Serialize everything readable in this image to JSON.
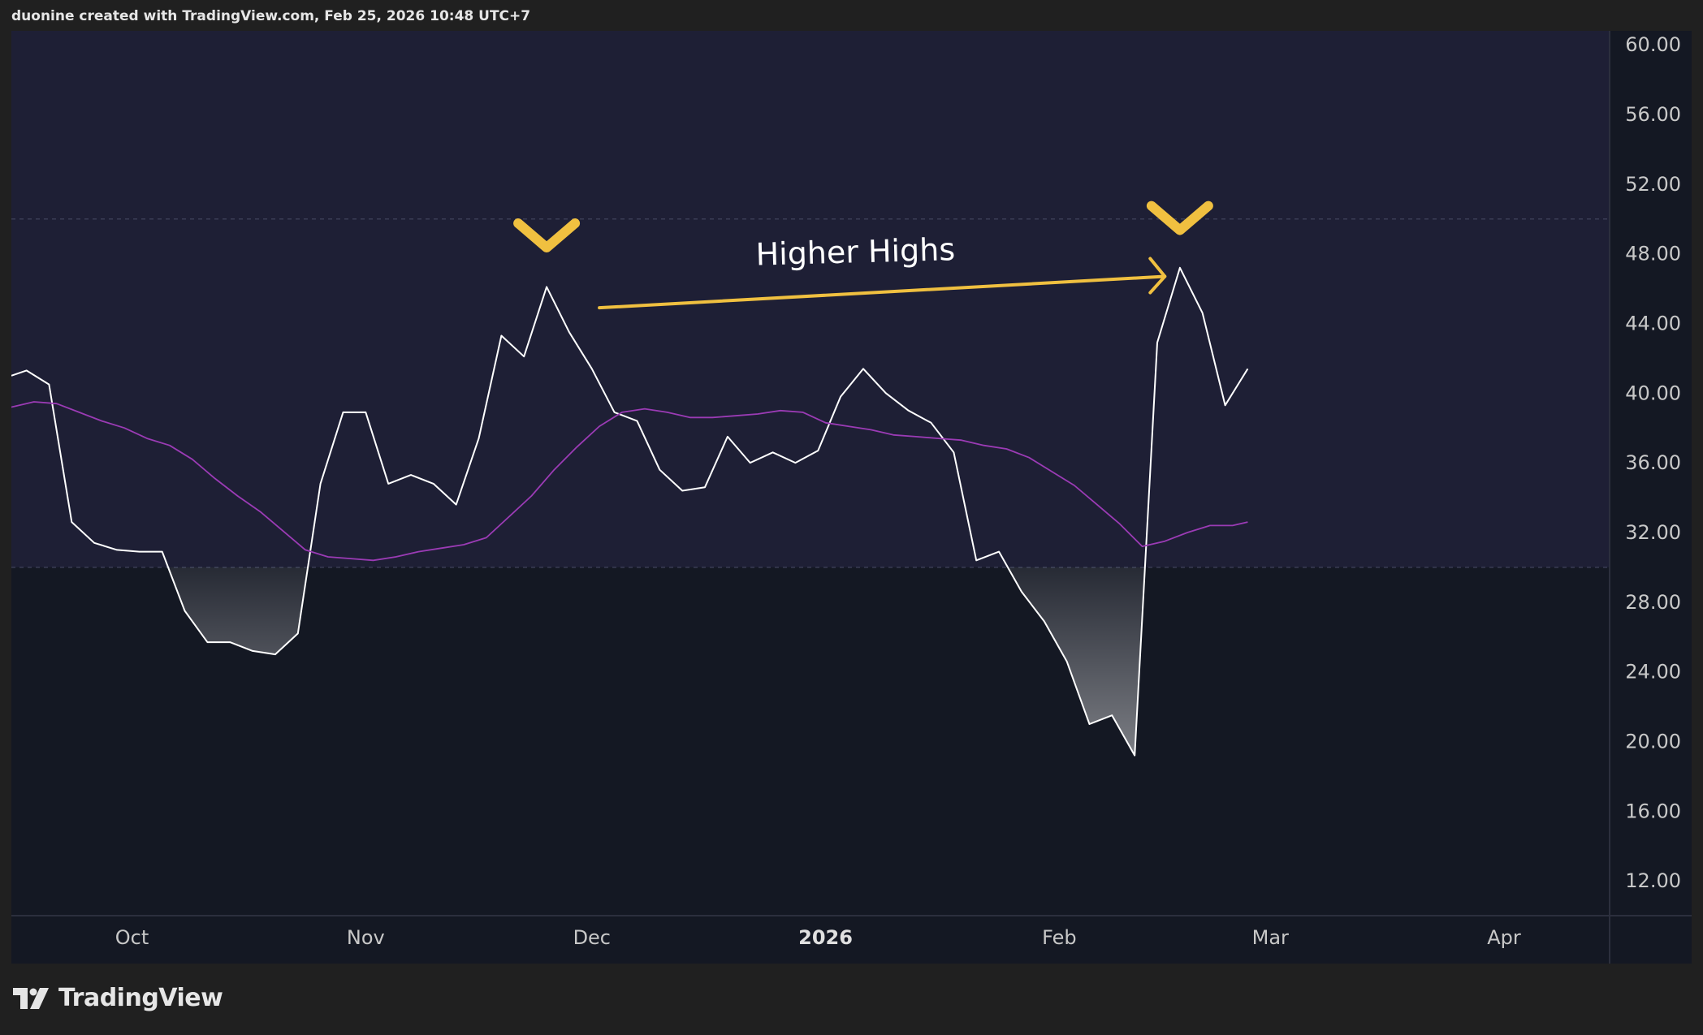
{
  "header": {
    "attribution": "duonine created with TradingView.com, Feb 25, 2026 10:48 UTC+7"
  },
  "footer": {
    "brand": "TradingView"
  },
  "colors": {
    "page_background": "#202020",
    "chart_background": "#141823",
    "band_fill": "#1e1f35",
    "rsi_line": "#ffffff",
    "ma_line": "#9b3bb5",
    "annotation_accent": "#f0c040",
    "gridline": "#3a3d55"
  },
  "chart_data": {
    "type": "line",
    "title": "",
    "xlabel": "",
    "ylabel": "",
    "ylim": [
      10,
      60.8
    ],
    "y_ticks": [
      "60.00",
      "56.00",
      "52.00",
      "48.00",
      "44.00",
      "40.00",
      "36.00",
      "32.00",
      "28.00",
      "24.00",
      "20.00",
      "16.00",
      "12.00"
    ],
    "x_ticks": [
      {
        "label": "Oct",
        "date": "2025-10-01",
        "bold": false
      },
      {
        "label": "Nov",
        "date": "2025-11-01",
        "bold": false
      },
      {
        "label": "Dec",
        "date": "2025-12-01",
        "bold": false
      },
      {
        "label": "2026",
        "date": "2026-01-01",
        "bold": true
      },
      {
        "label": "Feb",
        "date": "2026-02-01",
        "bold": false
      },
      {
        "label": "Mar",
        "date": "2026-03-01",
        "bold": false
      },
      {
        "label": "Apr",
        "date": "2026-04-01",
        "bold": false
      }
    ],
    "x_range": [
      "2025-09-15",
      "2026-04-15"
    ],
    "band": {
      "upper": 50,
      "lower": 30
    },
    "series": [
      {
        "color": "#ffffff",
        "points": [
          [
            "2025-09-15",
            41.0
          ],
          [
            "2025-09-17",
            41.3
          ],
          [
            "2025-09-20",
            40.5
          ],
          [
            "2025-09-23",
            32.6
          ],
          [
            "2025-09-26",
            31.4
          ],
          [
            "2025-09-29",
            31.0
          ],
          [
            "2025-10-02",
            30.9
          ],
          [
            "2025-10-05",
            30.9
          ],
          [
            "2025-10-08",
            27.5
          ],
          [
            "2025-10-11",
            25.7
          ],
          [
            "2025-10-14",
            25.7
          ],
          [
            "2025-10-17",
            25.2
          ],
          [
            "2025-10-20",
            25.0
          ],
          [
            "2025-10-23",
            26.2
          ],
          [
            "2025-10-26",
            34.8
          ],
          [
            "2025-10-29",
            38.9
          ],
          [
            "2025-11-01",
            38.9
          ],
          [
            "2025-11-04",
            34.8
          ],
          [
            "2025-11-07",
            35.3
          ],
          [
            "2025-11-10",
            34.8
          ],
          [
            "2025-11-13",
            33.6
          ],
          [
            "2025-11-16",
            37.4
          ],
          [
            "2025-11-19",
            43.3
          ],
          [
            "2025-11-22",
            42.1
          ],
          [
            "2025-11-25",
            46.1
          ],
          [
            "2025-11-28",
            43.5
          ],
          [
            "2025-12-01",
            41.4
          ],
          [
            "2025-12-04",
            38.9
          ],
          [
            "2025-12-07",
            38.4
          ],
          [
            "2025-12-10",
            35.6
          ],
          [
            "2025-12-13",
            34.4
          ],
          [
            "2025-12-16",
            34.6
          ],
          [
            "2025-12-19",
            37.5
          ],
          [
            "2025-12-22",
            36.0
          ],
          [
            "2025-12-25",
            36.6
          ],
          [
            "2025-12-28",
            36.0
          ],
          [
            "2025-12-31",
            36.7
          ],
          [
            "2026-01-03",
            39.8
          ],
          [
            "2026-01-06",
            41.4
          ],
          [
            "2026-01-09",
            40.0
          ],
          [
            "2026-01-12",
            39.0
          ],
          [
            "2026-01-15",
            38.3
          ],
          [
            "2026-01-18",
            36.6
          ],
          [
            "2026-01-21",
            30.4
          ],
          [
            "2026-01-24",
            30.9
          ],
          [
            "2026-01-27",
            28.6
          ],
          [
            "2026-01-30",
            26.9
          ],
          [
            "2026-02-02",
            24.6
          ],
          [
            "2026-02-05",
            21.0
          ],
          [
            "2026-02-08",
            21.5
          ],
          [
            "2026-02-11",
            19.2
          ],
          [
            "2026-02-14",
            42.9
          ],
          [
            "2026-02-17",
            47.2
          ],
          [
            "2026-02-20",
            44.6
          ],
          [
            "2026-02-23",
            39.3
          ],
          [
            "2026-02-26",
            41.4
          ]
        ]
      },
      {
        "color": "#9b3bb5",
        "points": [
          [
            "2025-09-15",
            39.2
          ],
          [
            "2025-09-18",
            39.5
          ],
          [
            "2025-09-21",
            39.4
          ],
          [
            "2025-09-24",
            38.9
          ],
          [
            "2025-09-27",
            38.4
          ],
          [
            "2025-09-30",
            38.0
          ],
          [
            "2025-10-03",
            37.4
          ],
          [
            "2025-10-06",
            37.0
          ],
          [
            "2025-10-09",
            36.2
          ],
          [
            "2025-10-12",
            35.1
          ],
          [
            "2025-10-15",
            34.1
          ],
          [
            "2025-10-18",
            33.2
          ],
          [
            "2025-10-21",
            32.1
          ],
          [
            "2025-10-24",
            31.0
          ],
          [
            "2025-10-27",
            30.6
          ],
          [
            "2025-10-30",
            30.5
          ],
          [
            "2025-11-02",
            30.4
          ],
          [
            "2025-11-05",
            30.6
          ],
          [
            "2025-11-08",
            30.9
          ],
          [
            "2025-11-11",
            31.1
          ],
          [
            "2025-11-14",
            31.3
          ],
          [
            "2025-11-17",
            31.7
          ],
          [
            "2025-11-20",
            32.9
          ],
          [
            "2025-11-23",
            34.1
          ],
          [
            "2025-11-26",
            35.6
          ],
          [
            "2025-11-29",
            36.9
          ],
          [
            "2025-12-02",
            38.1
          ],
          [
            "2025-12-05",
            38.9
          ],
          [
            "2025-12-08",
            39.1
          ],
          [
            "2025-12-11",
            38.9
          ],
          [
            "2025-12-14",
            38.6
          ],
          [
            "2025-12-17",
            38.6
          ],
          [
            "2025-12-20",
            38.7
          ],
          [
            "2025-12-23",
            38.8
          ],
          [
            "2025-12-26",
            39.0
          ],
          [
            "2025-12-29",
            38.9
          ],
          [
            "2026-01-01",
            38.3
          ],
          [
            "2026-01-04",
            38.1
          ],
          [
            "2026-01-07",
            37.9
          ],
          [
            "2026-01-10",
            37.6
          ],
          [
            "2026-01-13",
            37.5
          ],
          [
            "2026-01-16",
            37.4
          ],
          [
            "2026-01-19",
            37.3
          ],
          [
            "2026-01-22",
            37.0
          ],
          [
            "2026-01-25",
            36.8
          ],
          [
            "2026-01-28",
            36.3
          ],
          [
            "2026-01-31",
            35.5
          ],
          [
            "2026-02-03",
            34.7
          ],
          [
            "2026-02-06",
            33.6
          ],
          [
            "2026-02-09",
            32.5
          ],
          [
            "2026-02-12",
            31.2
          ],
          [
            "2026-02-15",
            31.5
          ],
          [
            "2026-02-18",
            32.0
          ],
          [
            "2026-02-21",
            32.4
          ],
          [
            "2026-02-24",
            32.4
          ],
          [
            "2026-02-26",
            32.6
          ]
        ]
      }
    ],
    "annotations": [
      {
        "type": "marker",
        "shape": "chevron-down",
        "date": "2025-11-25",
        "value": 49.1
      },
      {
        "type": "marker",
        "shape": "chevron-down",
        "date": "2026-02-17",
        "value": 50.1
      },
      {
        "type": "arrow",
        "from_date": "2025-12-02",
        "from_value": 44.9,
        "to_date": "2026-02-15",
        "to_value": 46.7
      },
      {
        "type": "text",
        "text": "Higher Highs",
        "date": "2026-01-05",
        "value": 47.5
      }
    ]
  }
}
